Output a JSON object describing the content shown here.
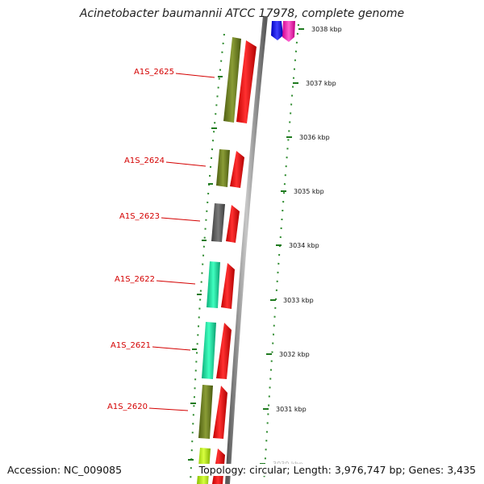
{
  "title": "Acinetobacter baumannii ATCC 17978, complete genome",
  "accession": "Accession: NC_009085",
  "summary": "Topology: circular; Length: 3,976,747 bp; Genes: 3,435",
  "ticks": [
    "3038 kbp",
    "3037 kbp",
    "3036 kbp",
    "3035 kbp",
    "3034 kbp",
    "3033 kbp",
    "3032 kbp",
    "3031 kbp",
    "3030 kbp"
  ],
  "genes": [
    "A1S_2625",
    "A1S_2624",
    "A1S_2623",
    "A1S_2622",
    "A1S_2621",
    "A1S_2620"
  ],
  "colors": {
    "label": "#d40000",
    "arrow": "#ff1010",
    "olive": "#6b7f1e",
    "gray": "#5e5e5e",
    "teal": "#17e0a0",
    "lime": "#b4f000",
    "backbone": "#8a8a8a",
    "gc": "#2e8b2e",
    "blue": "#1c1cff",
    "magenta": "#ff2fb3"
  }
}
